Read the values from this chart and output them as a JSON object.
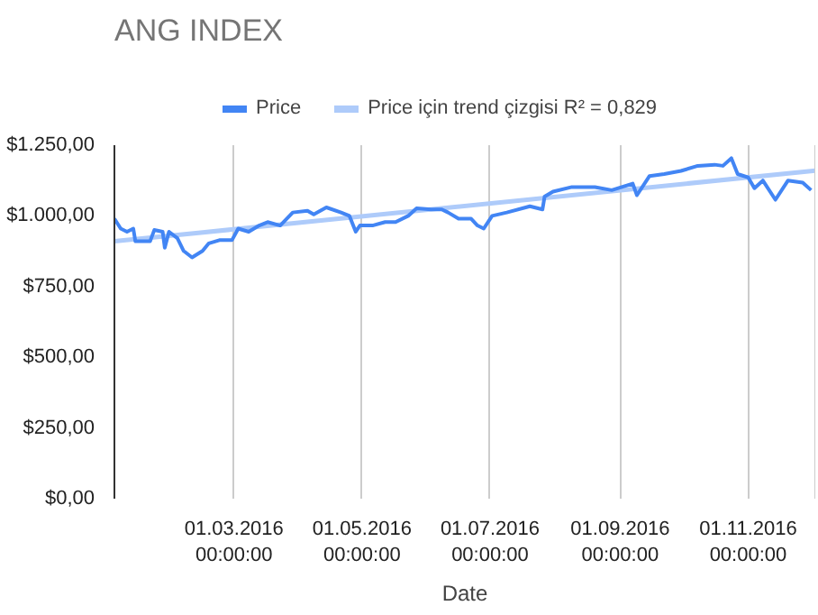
{
  "chart_data": {
    "type": "line",
    "title": "ANG INDEX",
    "xlabel": "Date",
    "x": [
      "2016-01-04",
      "2016-01-07",
      "2016-01-10",
      "2016-01-13",
      "2016-01-14",
      "2016-01-21",
      "2016-01-23",
      "2016-01-27",
      "2016-01-28",
      "2016-01-30",
      "2016-02-03",
      "2016-02-06",
      "2016-02-10",
      "2016-02-15",
      "2016-02-18",
      "2016-02-23",
      "2016-02-29",
      "2016-03-03",
      "2016-03-08",
      "2016-03-13",
      "2016-03-17",
      "2016-03-23",
      "2016-03-29",
      "2016-04-05",
      "2016-04-08",
      "2016-04-14",
      "2016-04-21",
      "2016-04-25",
      "2016-04-28",
      "2016-04-30",
      "2016-05-06",
      "2016-05-12",
      "2016-05-17",
      "2016-05-23",
      "2016-05-27",
      "2016-06-03",
      "2016-06-08",
      "2016-06-11",
      "2016-06-16",
      "2016-06-22",
      "2016-06-25",
      "2016-06-28",
      "2016-07-02",
      "2016-07-09",
      "2016-07-20",
      "2016-07-26",
      "2016-07-27",
      "2016-07-31",
      "2016-08-09",
      "2016-08-20",
      "2016-08-28",
      "2016-09-07",
      "2016-09-09",
      "2016-09-15",
      "2016-09-22",
      "2016-09-30",
      "2016-10-08",
      "2016-10-16",
      "2016-10-20",
      "2016-10-24",
      "2016-10-27",
      "2016-11-01",
      "2016-11-04",
      "2016-11-08",
      "2016-11-14",
      "2016-11-20",
      "2016-11-27",
      "2016-12-01"
    ],
    "series": [
      {
        "name": "Price",
        "color": "#4285f4",
        "values": [
          990,
          955,
          944,
          955,
          910,
          910,
          950,
          944,
          887,
          944,
          921,
          876,
          853,
          876,
          903,
          914,
          914,
          955,
          944,
          966,
          978,
          966,
          1012,
          1018,
          1005,
          1030,
          1012,
          1000,
          944,
          966,
          966,
          978,
          978,
          1000,
          1027,
          1023,
          1023,
          1012,
          990,
          990,
          966,
          955,
          1000,
          1012,
          1034,
          1023,
          1068,
          1086,
          1102,
          1102,
          1091,
          1114,
          1073,
          1141,
          1148,
          1159,
          1177,
          1181,
          1177,
          1204,
          1148,
          1136,
          1098,
          1125,
          1057,
          1125,
          1118,
          1091
        ]
      },
      {
        "name": "Price için trend çizgisi R² = 0,829",
        "color": "#aecbfa",
        "type": "line",
        "x": [
          "2016-01-04",
          "2016-12-03"
        ],
        "values": [
          910,
          1160
        ]
      }
    ],
    "xlim": [
      "2016-01-04",
      "2016-12-03"
    ],
    "xticks": [
      {
        "value": "2016-03-01",
        "label": "01.03.2016\n00:00:00"
      },
      {
        "value": "2016-05-01",
        "label": "01.05.2016\n00:00:00"
      },
      {
        "value": "2016-07-01",
        "label": "01.07.2016\n00:00:00"
      },
      {
        "value": "2016-09-01",
        "label": "01.09.2016\n00:00:00"
      },
      {
        "value": "2016-11-01",
        "label": "01.11.2016\n00:00:00"
      }
    ],
    "ylim": [
      0,
      1250
    ],
    "yticks": [
      {
        "value": 0,
        "label": "$0,00"
      },
      {
        "value": 250,
        "label": "$250,00"
      },
      {
        "value": 500,
        "label": "$500,00"
      },
      {
        "value": 750,
        "label": "$750,00"
      },
      {
        "value": 1000,
        "label": "$1.000,00"
      },
      {
        "value": 1250,
        "label": "$1.250,00"
      }
    ],
    "grid": "x",
    "legend": "top"
  }
}
